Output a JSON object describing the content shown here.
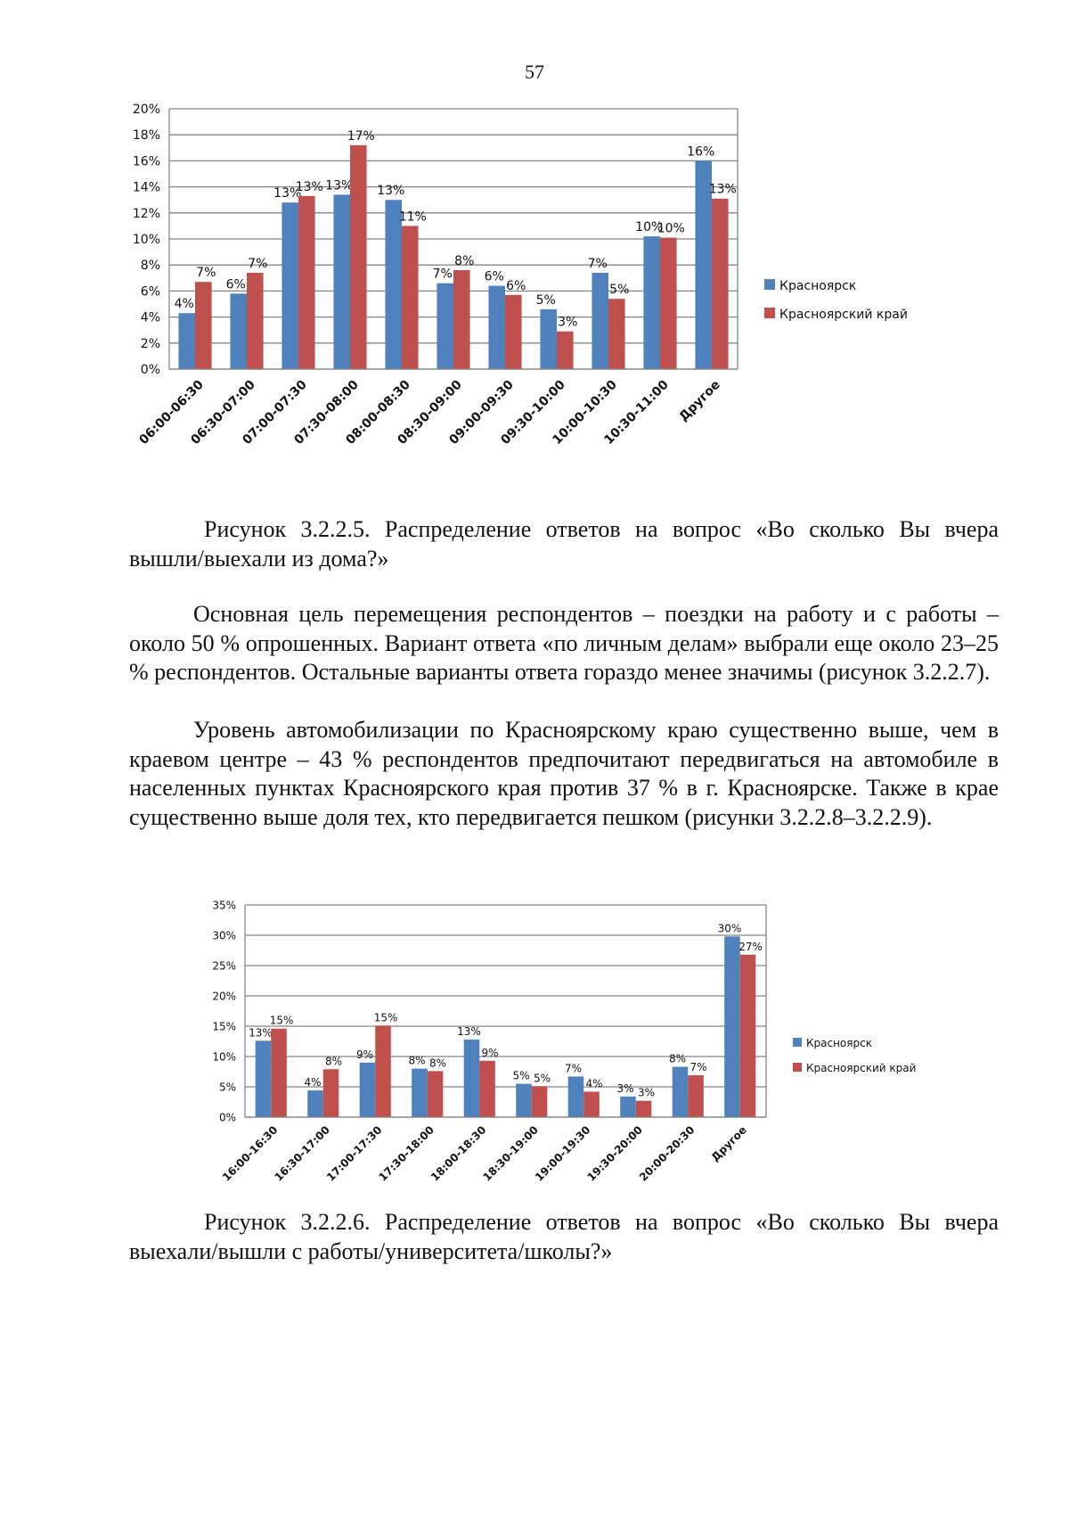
{
  "page": {
    "number": "57"
  },
  "figure1": {
    "caption": "Рисунок 3.2.2.5. Распределение ответов на вопрос «Во сколько Вы вчера вышли/выехали из дома?»"
  },
  "paragraphs": [
    "Основная цель перемещения респондентов – поездки на работу и с работы – около 50 % опрошенных. Вариант ответа «по личным делам» выбрали еще около 23–25 % респондентов. Остальные варианты ответа гораздо менее значимы (рисунок 3.2.2.7).",
    "Уровень автомобилизации по Красноярскому краю существенно выше, чем в краевом центре – 43 % респондентов предпочитают передвигаться на автомобиле в населенных пунктах Красноярского края против 37 % в г. Красноярске. Также в крае существенно выше доля тех, кто передвигается пешком (рисунки 3.2.2.8–3.2.2.9)."
  ],
  "figure2": {
    "caption": "Рисунок 3.2.2.6. Распределение ответов на вопрос «Во сколько Вы вчера выехали/вышли с работы/университета/школы?»"
  },
  "colors": {
    "krasnoyarsk": "#4f81bd",
    "krai": "#c0504d",
    "grid": "#858585"
  },
  "chart_data": [
    {
      "type": "bar",
      "title": "",
      "xlabel": "",
      "ylabel": "",
      "ylim": [
        0,
        20
      ],
      "yticks": [
        0,
        2,
        4,
        6,
        8,
        10,
        12,
        14,
        16,
        18,
        20
      ],
      "tick_suffix": "%",
      "grid": true,
      "legend_position": "right",
      "categories": [
        "06:00-06:30",
        "06:30-07:00",
        "07:00-07:30",
        "07:30-08:00",
        "08:00-08:30",
        "08:30-09:00",
        "09:00-09:30",
        "09:30-10:00",
        "10:00-10:30",
        "10:30-11:00",
        "Другое"
      ],
      "series": [
        {
          "name": "Красноярск",
          "color": "#4f81bd",
          "values": [
            4.3,
            5.8,
            12.8,
            13.4,
            13.0,
            6.6,
            6.4,
            4.6,
            7.4,
            10.2,
            16.0
          ],
          "labels": [
            "4%",
            "6%",
            "13%",
            "13%",
            "13%",
            "7%",
            "6%",
            "5%",
            "7%",
            "10%",
            "16%"
          ]
        },
        {
          "name": "Красноярский край",
          "color": "#c0504d",
          "values": [
            6.7,
            7.4,
            13.3,
            17.2,
            11.0,
            7.6,
            5.7,
            2.9,
            5.4,
            10.1,
            13.1
          ],
          "labels": [
            "7%",
            "7%",
            "13%",
            "17%",
            "11%",
            "8%",
            "6%",
            "3%",
            "5%",
            "10%",
            "13%"
          ]
        }
      ]
    },
    {
      "type": "bar",
      "title": "",
      "xlabel": "",
      "ylabel": "",
      "ylim": [
        0,
        35
      ],
      "yticks": [
        0,
        5,
        10,
        15,
        20,
        25,
        30,
        35
      ],
      "tick_suffix": "%",
      "grid": true,
      "legend_position": "right",
      "categories": [
        "16:00-16:30",
        "16:30-17:00",
        "17:00-17:30",
        "17:30-18:00",
        "18:00-18:30",
        "18:30-19:00",
        "19:00-19:30",
        "19:30-20:00",
        "20:00-20:30",
        "Другое"
      ],
      "series": [
        {
          "name": "Красноярск",
          "color": "#4f81bd",
          "values": [
            12.6,
            4.4,
            9.0,
            8.0,
            12.8,
            5.5,
            6.7,
            3.4,
            8.3,
            29.8
          ],
          "labels": [
            "13%",
            "4%",
            "9%",
            "8%",
            "13%",
            "5%",
            "7%",
            "3%",
            "8%",
            "30%"
          ]
        },
        {
          "name": "Красноярский край",
          "color": "#c0504d",
          "values": [
            14.6,
            7.9,
            15.1,
            7.6,
            9.3,
            5.1,
            4.2,
            2.7,
            6.9,
            26.8
          ],
          "labels": [
            "15%",
            "8%",
            "15%",
            "8%",
            "9%",
            "5%",
            "4%",
            "3%",
            "7%",
            "27%"
          ]
        }
      ]
    }
  ]
}
